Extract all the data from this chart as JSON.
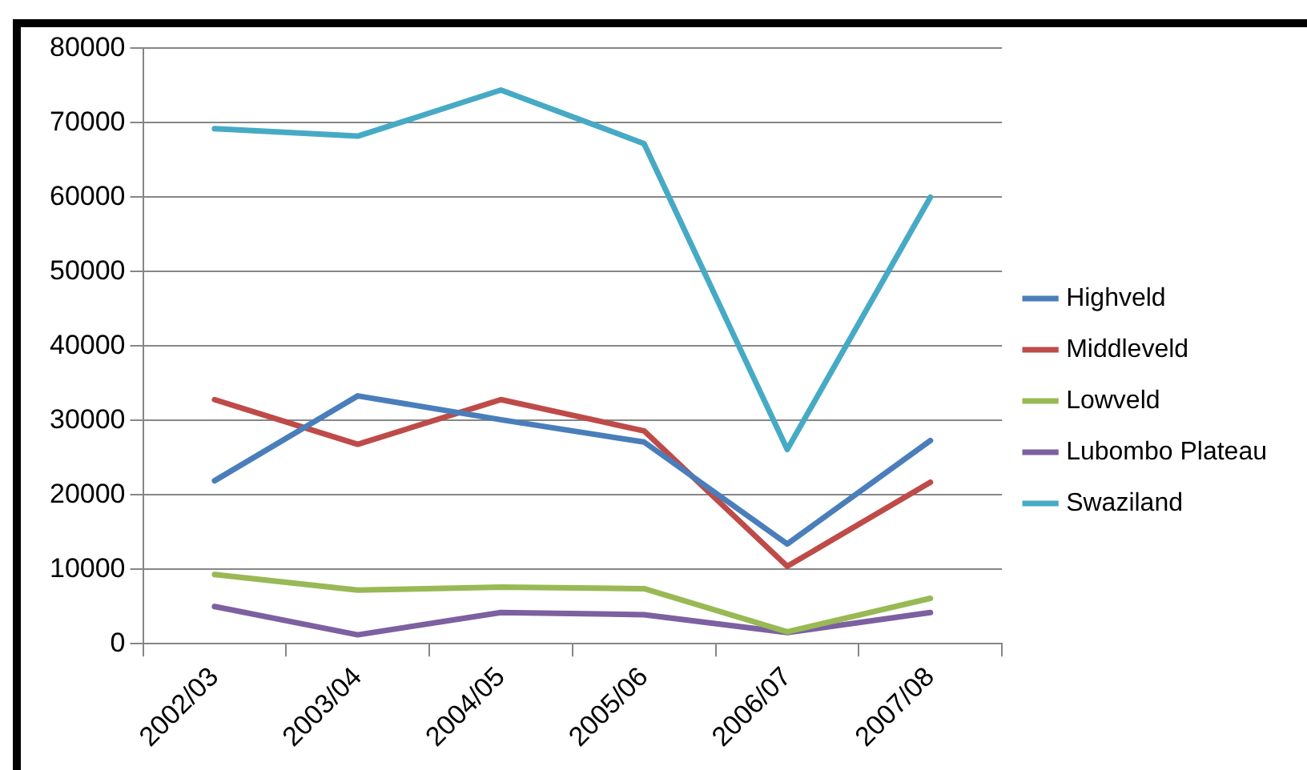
{
  "chart_data": {
    "type": "line",
    "categories": [
      "2002/03",
      "2003/04",
      "2004/05",
      "2005/06",
      "2006/07",
      "2007/08"
    ],
    "series": [
      {
        "name": "Highveld",
        "color": "#4a7ebb",
        "values": [
          21900,
          33300,
          30100,
          27100,
          13400,
          27300
        ]
      },
      {
        "name": "Middleveld",
        "color": "#be4b48",
        "values": [
          32800,
          26800,
          32800,
          28600,
          10400,
          21700
        ]
      },
      {
        "name": "Lowveld",
        "color": "#98b954",
        "values": [
          9300,
          7200,
          7600,
          7400,
          1600,
          6100
        ]
      },
      {
        "name": "Lubombo Plateau",
        "color": "#7d60a0",
        "values": [
          5000,
          1200,
          4200,
          3900,
          1500,
          4200
        ]
      },
      {
        "name": "Swaziland",
        "color": "#46aac5",
        "values": [
          69200,
          68200,
          74400,
          67200,
          26100,
          60000
        ]
      }
    ],
    "ylim": [
      0,
      80000
    ],
    "yticks": [
      0,
      10000,
      20000,
      30000,
      40000,
      50000,
      60000,
      70000,
      80000
    ],
    "grid": "y",
    "legend": "right",
    "marker": "none",
    "line_style": "solid"
  }
}
